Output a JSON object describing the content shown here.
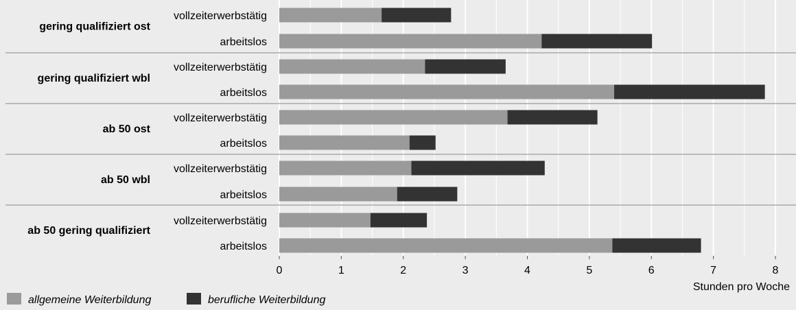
{
  "chart_data": {
    "type": "bar",
    "orientation": "horizontal",
    "stacked": true,
    "title": "",
    "xlabel": "Stunden pro Woche",
    "ylabel": "",
    "xlim": [
      0,
      8
    ],
    "x_ticks": [
      "0",
      "1",
      "2",
      "3",
      "4",
      "5",
      "6",
      "7",
      "8"
    ],
    "grid": true,
    "legend_position": "bottom-left",
    "groups": [
      {
        "label": "gering qualifiziert ost",
        "bars": [
          {
            "label": "vollzeiterwerbstätig",
            "values": [
              1.65,
              1.12
            ]
          },
          {
            "label": "arbeitslos",
            "values": [
              4.23,
              1.78
            ]
          }
        ]
      },
      {
        "label": "gering qualifiziert wbl",
        "bars": [
          {
            "label": "vollzeiterwerbstätig",
            "values": [
              2.35,
              1.3
            ]
          },
          {
            "label": "arbeitslos",
            "values": [
              5.4,
              2.43
            ]
          }
        ]
      },
      {
        "label": "ab 50 ost",
        "bars": [
          {
            "label": "vollzeiterwerbstätig",
            "values": [
              3.68,
              1.45
            ]
          },
          {
            "label": "arbeitslos",
            "values": [
              2.1,
              0.42
            ]
          }
        ]
      },
      {
        "label": "ab 50 wbl",
        "bars": [
          {
            "label": "vollzeiterwerbstätig",
            "values": [
              2.13,
              2.15
            ]
          },
          {
            "label": "arbeitslos",
            "values": [
              1.9,
              0.97
            ]
          }
        ]
      },
      {
        "label": "ab 50 gering qualifiziert",
        "bars": [
          {
            "label": "vollzeiterwerbstätig",
            "values": [
              1.47,
              0.91
            ]
          },
          {
            "label": "arbeitslos",
            "values": [
              5.37,
              1.43
            ]
          }
        ]
      }
    ],
    "series": [
      {
        "name": "allgemeine Weiterbildung",
        "color": "#9a9a9a"
      },
      {
        "name": "berufliche Weiterbildung",
        "color": "#333333"
      }
    ]
  },
  "colors": {
    "background": "#ececec",
    "gridline": "#ffffff",
    "separator": "#aaaaaa"
  }
}
